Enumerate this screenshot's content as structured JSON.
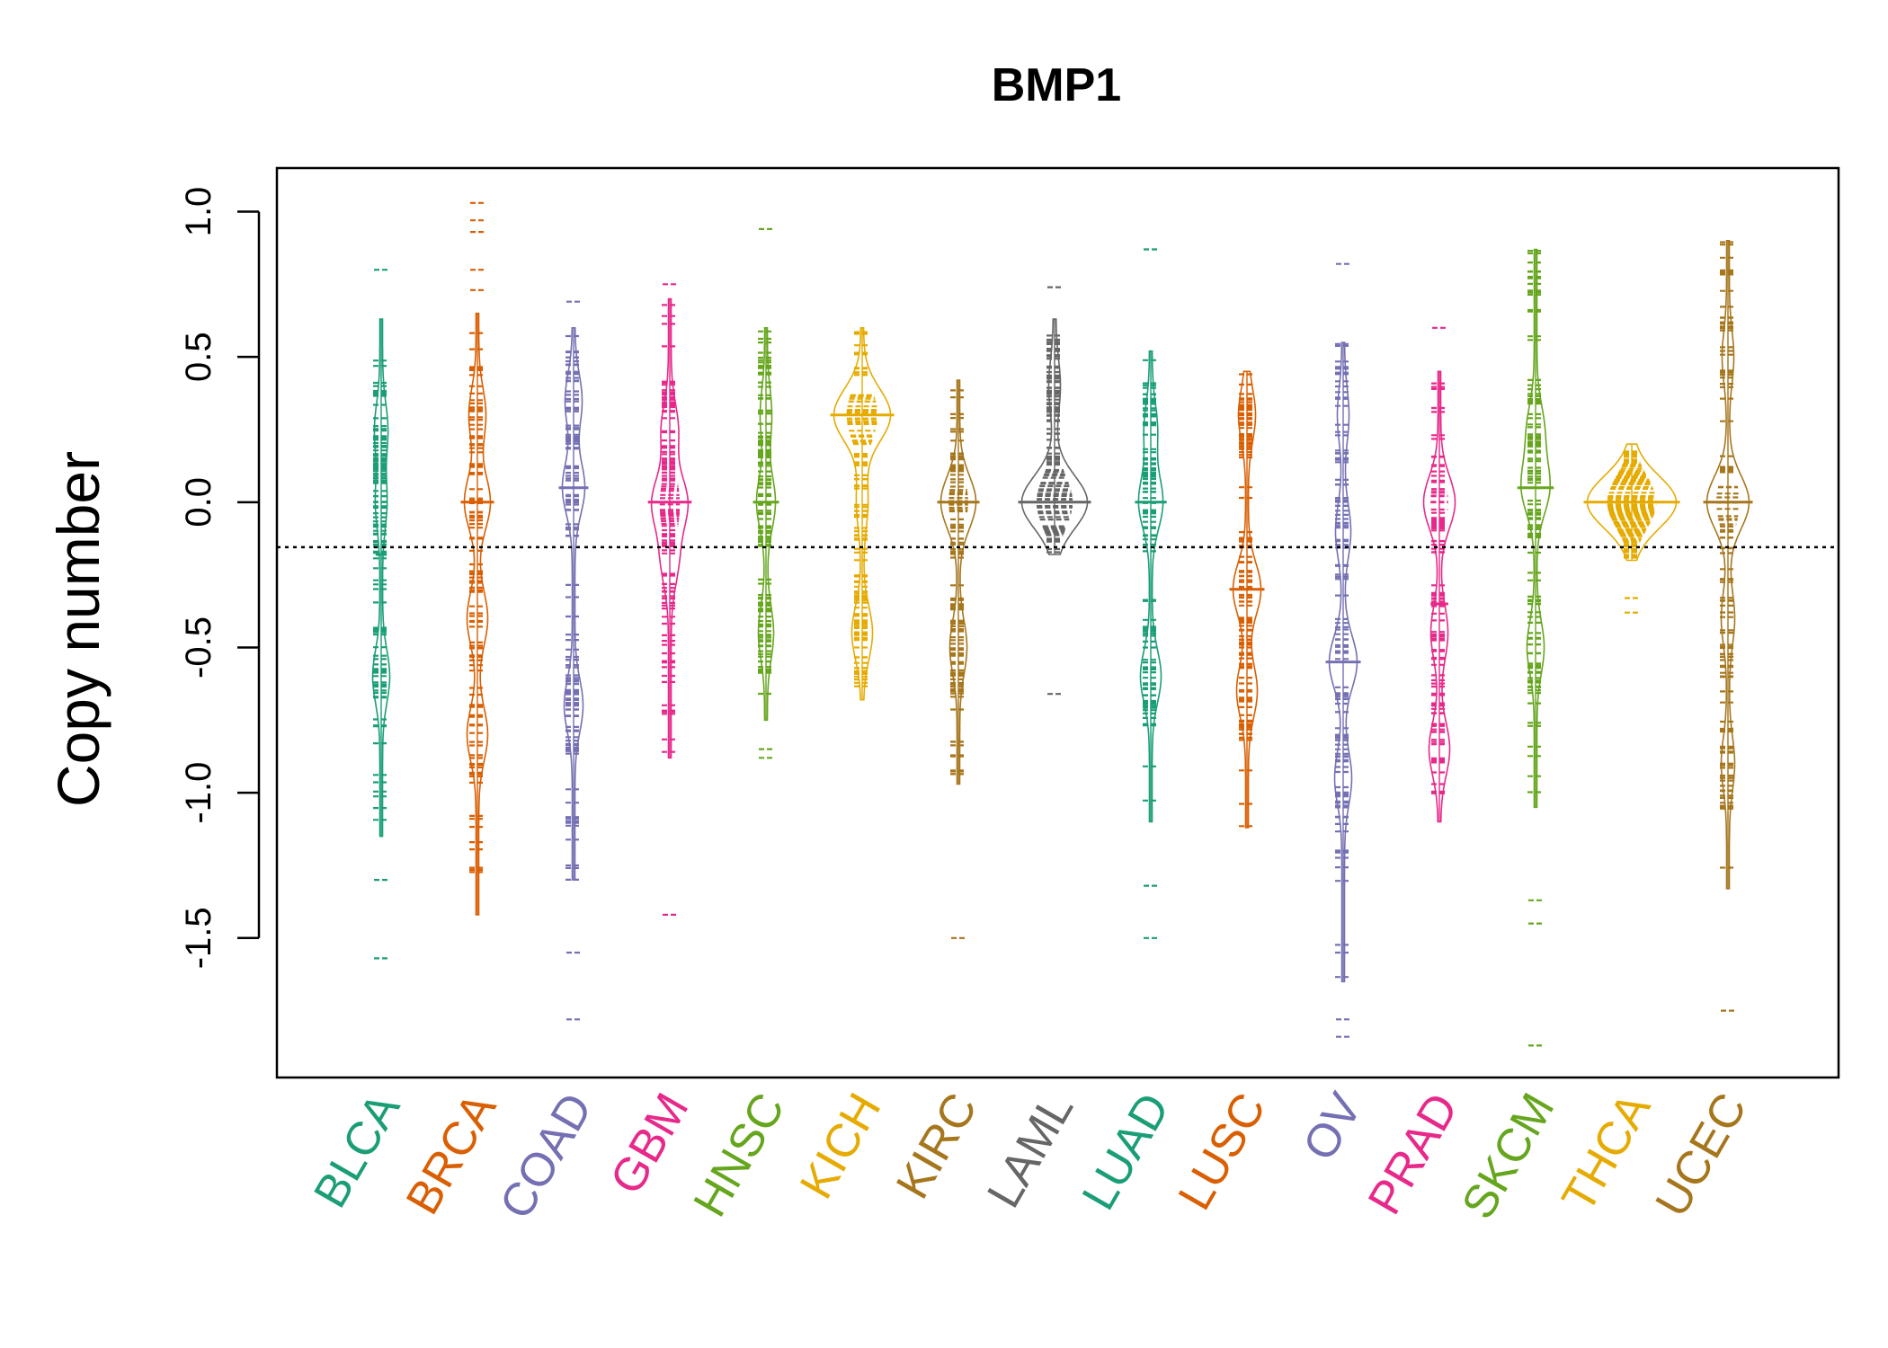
{
  "chart_data": {
    "type": "beanplot",
    "title": "BMP1",
    "ylabel": "Copy number",
    "xlabel": "",
    "ylim": [
      -1.98,
      1.15
    ],
    "yticks": [
      1.0,
      0.5,
      0.0,
      -0.5,
      -1.0,
      -1.5
    ],
    "ytick_labels": [
      "1.0",
      "0.5",
      "0.0",
      "-0.5",
      "-1.0",
      "-1.5"
    ],
    "reference_line": -0.155,
    "categories": [
      "BLCA",
      "BRCA",
      "COAD",
      "GBM",
      "HNSC",
      "KICH",
      "KIRC",
      "LAML",
      "LUAD",
      "LUSC",
      "OV",
      "PRAD",
      "SKCM",
      "THCA",
      "UCEC"
    ],
    "colors": [
      "#1b9e77",
      "#d95f02",
      "#7570b3",
      "#e7298a",
      "#66a61e",
      "#e6ab02",
      "#a6761d",
      "#666666",
      "#1b9e77",
      "#d95f02",
      "#7570b3",
      "#e7298a",
      "#66a61e",
      "#e6ab02",
      "#a6761d"
    ],
    "series": [
      {
        "name": "BLCA",
        "min": -1.15,
        "max": 0.63,
        "median": -0.18,
        "outliers": [
          0.8,
          -1.3,
          -1.57
        ],
        "modes": [
          [
            0.25,
            6
          ],
          [
            0.0,
            5
          ],
          [
            -0.6,
            8
          ]
        ]
      },
      {
        "name": "BRCA",
        "min": -1.42,
        "max": 0.65,
        "median": 0.0,
        "outliers": [
          1.03,
          0.97,
          0.93,
          0.8,
          0.73
        ],
        "modes": [
          [
            0.3,
            8
          ],
          [
            0.0,
            13
          ],
          [
            -0.4,
            10
          ],
          [
            -0.8,
            10
          ]
        ]
      },
      {
        "name": "COAD",
        "min": -1.3,
        "max": 0.6,
        "median": 0.05,
        "outliers": [
          0.69,
          -1.55,
          -1.78
        ],
        "modes": [
          [
            0.35,
            8
          ],
          [
            0.05,
            11
          ],
          [
            -0.7,
            9
          ]
        ]
      },
      {
        "name": "GBM",
        "min": -0.88,
        "max": 0.7,
        "median": 0.0,
        "outliers": [
          0.75,
          -1.42
        ],
        "modes": [
          [
            0.25,
            8
          ],
          [
            0.0,
            18
          ],
          [
            -0.2,
            8
          ]
        ]
      },
      {
        "name": "HNSC",
        "min": -0.75,
        "max": 0.6,
        "median": 0.0,
        "outliers": [
          0.94,
          -0.85,
          -0.88
        ],
        "modes": [
          [
            0.3,
            5
          ],
          [
            0.0,
            9
          ],
          [
            -0.45,
            7
          ]
        ]
      },
      {
        "name": "KICH",
        "min": -0.68,
        "max": 0.6,
        "median": 0.3,
        "outliers": [],
        "modes": [
          [
            0.3,
            30
          ],
          [
            0.0,
            5
          ],
          [
            -0.45,
            10
          ]
        ]
      },
      {
        "name": "KIRC",
        "min": -0.97,
        "max": 0.42,
        "median": 0.0,
        "outliers": [
          -1.5
        ],
        "modes": [
          [
            0.0,
            18
          ],
          [
            -0.5,
            8
          ]
        ]
      },
      {
        "name": "LAML",
        "min": -0.18,
        "max": 0.63,
        "median": 0.0,
        "outliers": [
          0.74,
          -0.66
        ],
        "modes": [
          [
            0.0,
            35
          ],
          [
            0.4,
            5
          ]
        ]
      },
      {
        "name": "LUAD",
        "min": -1.1,
        "max": 0.52,
        "median": 0.0,
        "outliers": [
          0.87,
          -1.32,
          -1.5
        ],
        "modes": [
          [
            0.25,
            6
          ],
          [
            0.0,
            12
          ],
          [
            -0.6,
            10
          ]
        ]
      },
      {
        "name": "LUSC",
        "min": -1.12,
        "max": 0.45,
        "median": -0.3,
        "outliers": [],
        "modes": [
          [
            0.3,
            8
          ],
          [
            -0.3,
            14
          ],
          [
            -0.65,
            10
          ]
        ]
      },
      {
        "name": "OV",
        "min": -1.65,
        "max": 0.55,
        "median": -0.55,
        "outliers": [
          0.82,
          -1.78,
          -1.84
        ],
        "modes": [
          [
            0.3,
            5
          ],
          [
            -0.1,
            7
          ],
          [
            -0.55,
            14
          ],
          [
            -0.95,
            8
          ]
        ]
      },
      {
        "name": "PRAD",
        "min": -1.1,
        "max": 0.45,
        "median": -0.35,
        "outliers": [
          0.6
        ],
        "modes": [
          [
            0.0,
            16
          ],
          [
            -0.45,
            8
          ],
          [
            -0.85,
            10
          ]
        ]
      },
      {
        "name": "SKCM",
        "min": -1.05,
        "max": 0.87,
        "median": 0.05,
        "outliers": [
          -1.37,
          -1.45,
          -1.87
        ],
        "modes": [
          [
            0.25,
            8
          ],
          [
            0.05,
            14
          ],
          [
            -0.5,
            8
          ]
        ]
      },
      {
        "name": "THCA",
        "min": -0.2,
        "max": 0.2,
        "median": 0.0,
        "outliers": [
          -0.33,
          -0.38
        ],
        "modes": [
          [
            0.0,
            48
          ]
        ]
      },
      {
        "name": "UCEC",
        "min": -1.33,
        "max": 0.9,
        "median": 0.0,
        "outliers": [
          -1.75
        ],
        "modes": [
          [
            0.5,
            5
          ],
          [
            0.0,
            22
          ],
          [
            -0.4,
            6
          ],
          [
            -0.9,
            6
          ]
        ]
      }
    ]
  }
}
